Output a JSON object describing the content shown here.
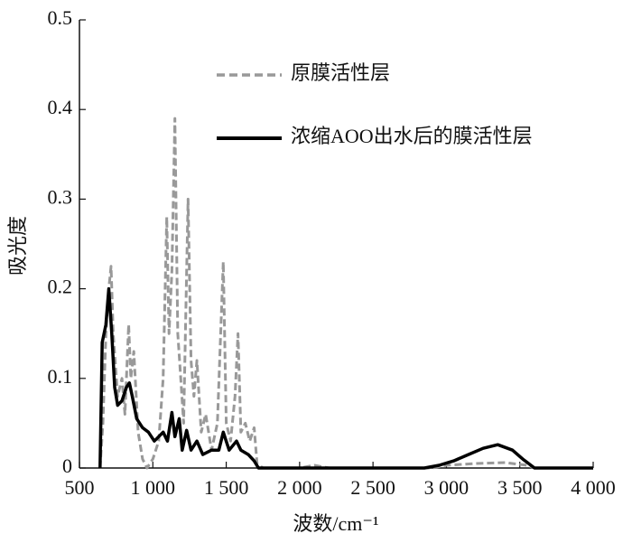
{
  "chart_data": {
    "type": "line",
    "x_label": "波数/cm⁻¹",
    "y_label": "吸光度",
    "xlim": [
      500,
      4000
    ],
    "ylim": [
      0,
      0.5
    ],
    "xticks": [
      {
        "value": 500,
        "label": "500"
      },
      {
        "value": 1000,
        "label": "1 000"
      },
      {
        "value": 1500,
        "label": "1 500"
      },
      {
        "value": 2000,
        "label": "2 000"
      },
      {
        "value": 2500,
        "label": "2 500"
      },
      {
        "value": 3000,
        "label": "3 000"
      },
      {
        "value": 3500,
        "label": "3 500"
      },
      {
        "value": 4000,
        "label": "4 000"
      }
    ],
    "yticks": [
      0,
      0.1,
      0.2,
      0.3,
      0.4,
      0.5
    ],
    "grid": false,
    "series": [
      {
        "name": "原膜活性层",
        "color": "#999999",
        "dash": true,
        "x": [
          640,
          660,
          680,
          700,
          715,
          730,
          760,
          790,
          810,
          835,
          850,
          870,
          900,
          930,
          960,
          1000,
          1040,
          1070,
          1095,
          1110,
          1130,
          1150,
          1170,
          1190,
          1210,
          1240,
          1260,
          1280,
          1300,
          1330,
          1360,
          1400,
          1440,
          1480,
          1500,
          1530,
          1560,
          1580,
          1600,
          1630,
          1660,
          1690,
          1710,
          1750,
          2000,
          2100,
          2200,
          2900,
          3000,
          3200,
          3400,
          3550,
          3600,
          4000
        ],
        "values": [
          0,
          0.05,
          0.15,
          0.2,
          0.225,
          0.15,
          0.08,
          0.1,
          0.06,
          0.16,
          0.1,
          0.13,
          0.04,
          0.01,
          0,
          0.01,
          0.03,
          0.1,
          0.28,
          0.15,
          0.22,
          0.39,
          0.15,
          0.1,
          0.05,
          0.3,
          0.12,
          0.08,
          0.12,
          0.04,
          0.06,
          0.02,
          0.05,
          0.23,
          0.05,
          0.03,
          0.08,
          0.15,
          0.04,
          0.05,
          0.03,
          0.045,
          0.005,
          0,
          0,
          0.003,
          0,
          0,
          0.003,
          0.005,
          0.006,
          0.003,
          0,
          0
        ]
      },
      {
        "name": "浓缩AOO出水后的膜活性层",
        "color": "#000000",
        "dash": false,
        "x": [
          640,
          655,
          680,
          700,
          720,
          740,
          760,
          790,
          820,
          840,
          860,
          890,
          930,
          970,
          1010,
          1040,
          1070,
          1100,
          1130,
          1150,
          1180,
          1200,
          1230,
          1260,
          1300,
          1340,
          1400,
          1450,
          1480,
          1520,
          1570,
          1600,
          1650,
          1690,
          1720,
          2000,
          2850,
          2950,
          3050,
          3150,
          3250,
          3350,
          3450,
          3520,
          3600,
          4000
        ],
        "values": [
          0,
          0.14,
          0.16,
          0.2,
          0.15,
          0.09,
          0.07,
          0.075,
          0.09,
          0.095,
          0.08,
          0.055,
          0.045,
          0.04,
          0.03,
          0.035,
          0.04,
          0.03,
          0.062,
          0.035,
          0.055,
          0.02,
          0.042,
          0.02,
          0.03,
          0.015,
          0.02,
          0.02,
          0.04,
          0.02,
          0.03,
          0.02,
          0.015,
          0.008,
          0,
          0,
          0,
          0.003,
          0.008,
          0.015,
          0.022,
          0.026,
          0.02,
          0.01,
          0,
          0
        ]
      }
    ]
  }
}
